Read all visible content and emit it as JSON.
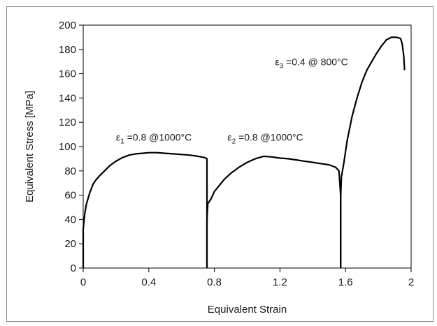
{
  "chart_data": {
    "type": "line",
    "title": "",
    "xlabel": "Equivalent Strain",
    "ylabel": "Equivalent Stress [MPa]",
    "xlim": [
      0,
      2
    ],
    "ylim": [
      0,
      200
    ],
    "xticks": [
      "0",
      "0.4",
      "0.8",
      "1.2",
      "1.6",
      "2"
    ],
    "xtick_values": [
      0,
      0.4,
      0.8,
      1.2,
      1.6,
      2
    ],
    "yticks": [
      "0",
      "20",
      "40",
      "60",
      "80",
      "100",
      "120",
      "140",
      "160",
      "180",
      "200"
    ],
    "ytick_values": [
      0,
      20,
      40,
      60,
      80,
      100,
      120,
      140,
      160,
      180,
      200
    ],
    "grid": false,
    "legend": "none",
    "line_color": "#000000",
    "series": [
      {
        "name": "",
        "x": [
          0,
          0,
          0.01,
          0.02,
          0.04,
          0.06,
          0.08,
          0.1,
          0.13,
          0.16,
          0.2,
          0.24,
          0.28,
          0.32,
          0.36,
          0.4,
          0.45,
          0.5,
          0.55,
          0.6,
          0.65,
          0.7,
          0.74,
          0.755,
          0.755
        ],
        "y": [
          0,
          32,
          45,
          53,
          62,
          69,
          73,
          76,
          80,
          84,
          88,
          91,
          93,
          94,
          94.5,
          95,
          95,
          94.5,
          94,
          93.5,
          93,
          92,
          91,
          90,
          0
        ]
      },
      {
        "name": "",
        "x": [
          0.755,
          0.755,
          0.76,
          0.78,
          0.8,
          0.83,
          0.86,
          0.9,
          0.95,
          1.0,
          1.05,
          1.1,
          1.15,
          1.2,
          1.25,
          1.3,
          1.35,
          1.4,
          1.45,
          1.5,
          1.54,
          1.56,
          1.57,
          1.57
        ],
        "y": [
          0,
          40,
          53,
          57,
          63,
          68,
          73,
          78,
          83,
          87,
          90,
          92,
          91.5,
          90.5,
          90,
          89,
          88,
          87,
          86,
          85,
          83,
          80,
          60,
          0
        ]
      },
      {
        "name": "",
        "x": [
          1.57,
          1.57,
          1.575,
          1.59,
          1.61,
          1.64,
          1.67,
          1.7,
          1.73,
          1.76,
          1.79,
          1.82,
          1.85,
          1.88,
          1.91,
          1.935,
          1.945,
          1.955,
          1.96
        ],
        "y": [
          0,
          58,
          75,
          87,
          105,
          125,
          140,
          153,
          163,
          170,
          177,
          183,
          188,
          190,
          190,
          189,
          185,
          175,
          163
        ]
      }
    ],
    "annotations": [
      {
        "symbol": "ε",
        "sub": "1",
        "text": " =0.8 @1000°C",
        "x": 0.2,
        "y": 105
      },
      {
        "symbol": "ε",
        "sub": "2",
        "text": " =0.8 @1000°C",
        "x": 0.88,
        "y": 105
      },
      {
        "symbol": "ε",
        "sub": "3",
        "text": " =0.4 @ 800°C",
        "x": 1.17,
        "y": 167
      }
    ]
  }
}
